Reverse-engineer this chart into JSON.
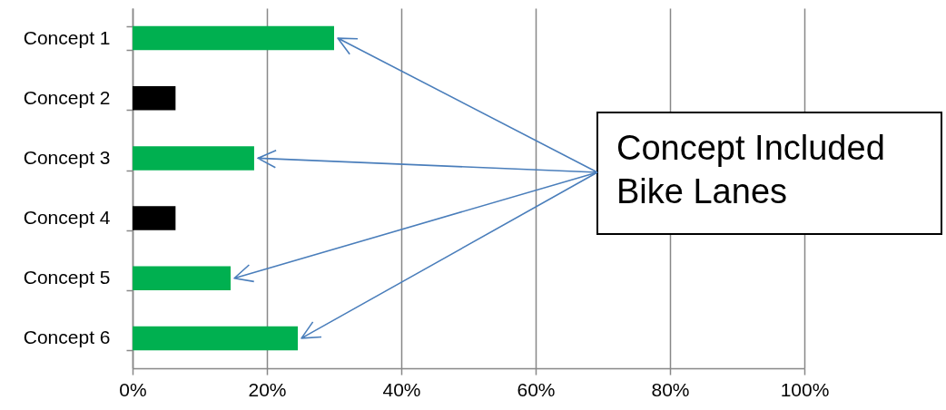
{
  "chart_data": {
    "type": "bar",
    "orientation": "horizontal",
    "categories": [
      "Concept 1",
      "Concept 2",
      "Concept 3",
      "Concept 4",
      "Concept 5",
      "Concept 6"
    ],
    "values": [
      30,
      6.4,
      18.1,
      6.4,
      14.6,
      24.6
    ],
    "colors": [
      "#00b050",
      "#000000",
      "#00b050",
      "#000000",
      "#00b050",
      "#00b050"
    ],
    "xlim": [
      0,
      100
    ],
    "xticks": [
      {
        "value": 0,
        "label": "0%"
      },
      {
        "value": 20,
        "label": "20%"
      },
      {
        "value": 40,
        "label": "40%"
      },
      {
        "value": 60,
        "label": "60%"
      },
      {
        "value": 80,
        "label": "80%"
      },
      {
        "value": 100,
        "label": "100%"
      }
    ],
    "grid": "x",
    "annotations": [
      "Concept Included\nBike Lanes"
    ]
  }
}
